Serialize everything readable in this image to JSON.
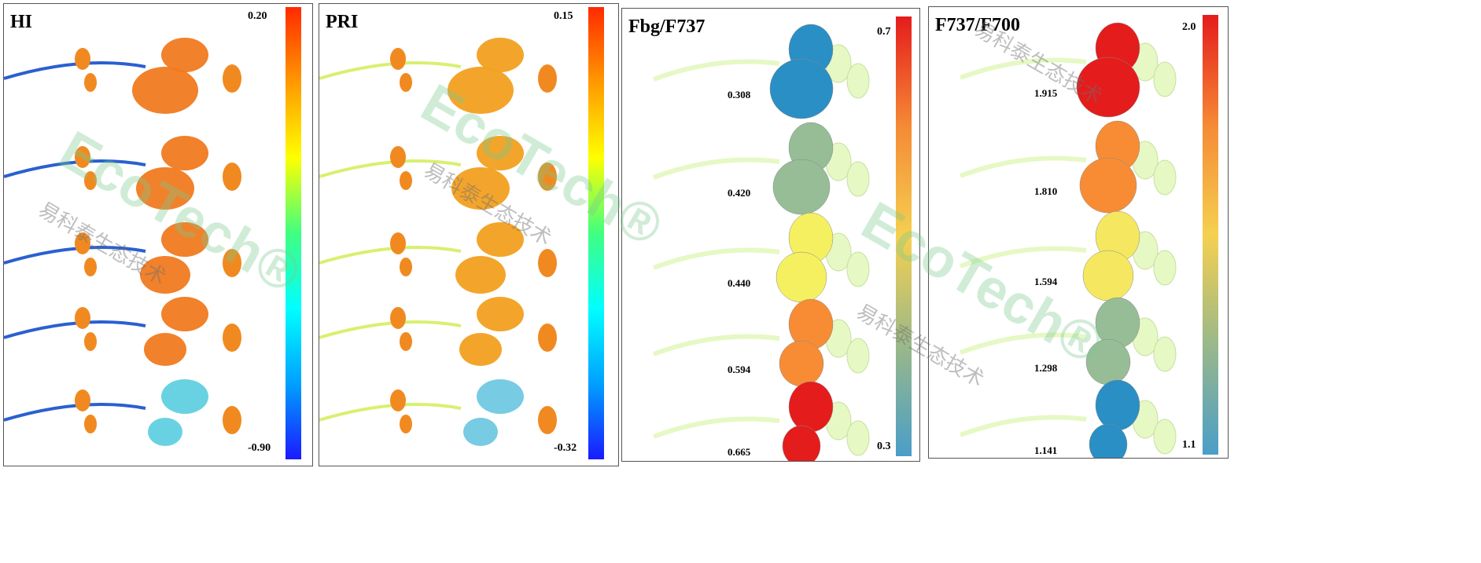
{
  "panels": [
    {
      "title": "HI",
      "colorbar": {
        "max": "0.20",
        "min": "-0.90",
        "colors": [
          "#1a1aff",
          "#00a0ff",
          "#00ffff",
          "#40ff80",
          "#ffff00",
          "#ff9900",
          "#ff2a00"
        ]
      },
      "style": "heatmap",
      "leaf_color": "#f07a20",
      "stem_color": "#2a60d0"
    },
    {
      "title": "PRI",
      "colorbar": {
        "max": "0.15",
        "min": "-0.32",
        "colors": [
          "#1a1aff",
          "#00a0ff",
          "#00ffff",
          "#40ff80",
          "#ffff00",
          "#ff9900",
          "#ff2a00"
        ]
      },
      "style": "heatmap",
      "leaf_color": "#f2a020",
      "stem_color": "#d8f070"
    },
    {
      "title": "Fbg/F737",
      "colorbar": {
        "max": "0.7",
        "min": "0.3",
        "colors": [
          "#4a9ec8",
          "#9ab88a",
          "#f5d050",
          "#f58a35",
          "#e51c1c"
        ]
      },
      "style": "uniform",
      "plants": [
        {
          "value": "0.308",
          "color": "#2a8fc4"
        },
        {
          "value": "0.420",
          "color": "#97bd97"
        },
        {
          "value": "0.440",
          "color": "#f5f060"
        },
        {
          "value": "0.594",
          "color": "#f78c35"
        },
        {
          "value": "0.665",
          "color": "#e51c1c"
        }
      ]
    },
    {
      "title": "F737/F700",
      "colorbar": {
        "max": "2.0",
        "min": "1.1",
        "colors": [
          "#4a9ec8",
          "#9ab88a",
          "#f5d050",
          "#f58a35",
          "#e51c1c"
        ]
      },
      "style": "uniform",
      "plants": [
        {
          "value": "1.915",
          "color": "#e51c1c"
        },
        {
          "value": "1.810",
          "color": "#f78c35"
        },
        {
          "value": "1.594",
          "color": "#f5e860"
        },
        {
          "value": "1.298",
          "color": "#97bd97"
        },
        {
          "value": "1.141",
          "color": "#2a8fc4"
        }
      ]
    }
  ],
  "watermark": {
    "logo": "EcoTech®",
    "chinese": "易科泰生态技术"
  }
}
